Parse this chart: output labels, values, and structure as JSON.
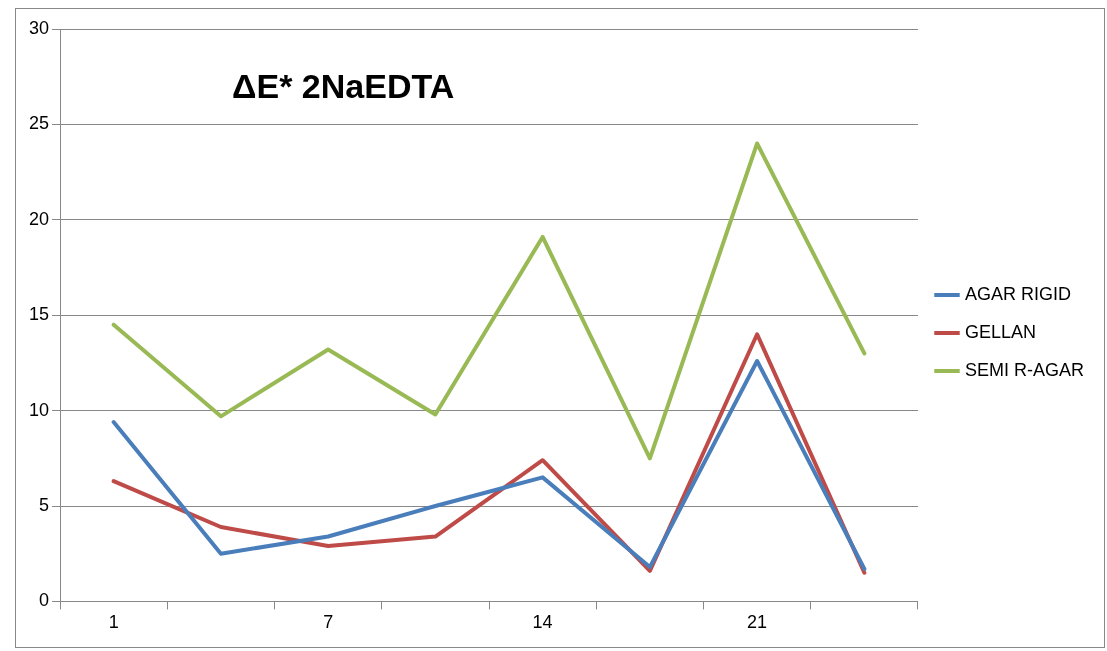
{
  "chart_data": {
    "type": "line",
    "title": "ΔE* 2NaEDTA",
    "categories": [
      "1",
      null,
      "7",
      null,
      "14",
      null,
      "21",
      null
    ],
    "series": [
      {
        "name": "AGAR RIGID",
        "color": "#4a7ebb",
        "values": [
          9.4,
          2.5,
          3.4,
          5.0,
          6.5,
          1.8,
          12.6,
          1.7
        ]
      },
      {
        "name": "GELLAN",
        "color": "#be4b48",
        "values": [
          6.3,
          3.9,
          2.9,
          3.4,
          7.4,
          1.6,
          14.0,
          1.5
        ]
      },
      {
        "name": "SEMI R-AGAR",
        "color": "#98b954",
        "values": [
          14.5,
          9.7,
          13.2,
          9.8,
          19.1,
          7.5,
          24.0,
          13.0
        ]
      }
    ],
    "ylim": [
      0,
      30
    ],
    "yticks": [
      0,
      5,
      10,
      15,
      20,
      25,
      30
    ],
    "grid": "y",
    "legend": "right",
    "marker": "none",
    "line_style": "solid"
  }
}
